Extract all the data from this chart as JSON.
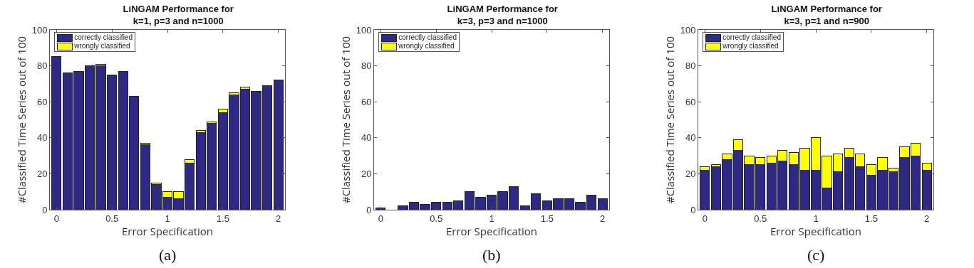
{
  "chart_data": [
    {
      "type": "bar",
      "stacked": true,
      "title": "LiNGAM Performance for\nk=1, p=3 and n=1000",
      "xlabel": "Error Specification",
      "ylabel": "#Classified Time Series out of 100",
      "x": [
        0,
        0.1,
        0.2,
        0.3,
        0.4,
        0.5,
        0.6,
        0.7,
        0.8,
        0.9,
        1,
        1.1,
        1.2,
        1.3,
        1.4,
        1.5,
        1.6,
        1.7,
        1.8,
        1.9,
        2
      ],
      "xlim": [
        -0.06,
        2.06
      ],
      "xticks": [
        0,
        0.5,
        1,
        1.5,
        2
      ],
      "ylim": [
        0,
        100
      ],
      "yticks": [
        0,
        20,
        40,
        60,
        80,
        100
      ],
      "grid": false,
      "legend": "top left",
      "annotations": [
        "(a)"
      ],
      "series": [
        {
          "name": "correctly classified",
          "color": "#2e2a83",
          "values": [
            85,
            76,
            77,
            80,
            80,
            75,
            77,
            63,
            36,
            14,
            7,
            6,
            26,
            43,
            48,
            54,
            64,
            67,
            66,
            69,
            72
          ]
        },
        {
          "name": "wrongly classified",
          "color": "#ffff00",
          "values": [
            0,
            0,
            0,
            0,
            1,
            0,
            0,
            0,
            1,
            1,
            3,
            4,
            2,
            1,
            1,
            2,
            1,
            1,
            0,
            0,
            0
          ]
        }
      ]
    },
    {
      "type": "bar",
      "stacked": true,
      "title": "LiNGAM Performance for\nk=3, p=3 and n=1000",
      "xlabel": "Error Specification",
      "ylabel": "#Classified Time Series out of 100",
      "x": [
        0,
        0.1,
        0.2,
        0.3,
        0.4,
        0.5,
        0.6,
        0.7,
        0.8,
        0.9,
        1,
        1.1,
        1.2,
        1.3,
        1.4,
        1.5,
        1.6,
        1.7,
        1.8,
        1.9,
        2
      ],
      "xlim": [
        -0.06,
        2.06
      ],
      "xticks": [
        0,
        0.5,
        1,
        1.5,
        2
      ],
      "ylim": [
        0,
        100
      ],
      "yticks": [
        0,
        20,
        40,
        60,
        80,
        100
      ],
      "grid": false,
      "legend": "top left",
      "annotations": [
        "(b)"
      ],
      "series": [
        {
          "name": "correctly classified",
          "color": "#2e2a83",
          "values": [
            1,
            0,
            2,
            4,
            3,
            4,
            4,
            5,
            10,
            7,
            8,
            10,
            13,
            2,
            9,
            5,
            6,
            6,
            4,
            8,
            6
          ]
        },
        {
          "name": "wrongly classified",
          "color": "#ffff00",
          "values": [
            0,
            0,
            0,
            0,
            0,
            0,
            0,
            0,
            0,
            0,
            0,
            0,
            0,
            0,
            0,
            0,
            0,
            0,
            0,
            0,
            0
          ]
        }
      ]
    },
    {
      "type": "bar",
      "stacked": true,
      "title": "LiNGAM Performance for\nk=3, p=1 and n=900",
      "xlabel": "Error Specification",
      "ylabel": "#Classified Time Series out of 100",
      "x": [
        0,
        0.1,
        0.2,
        0.3,
        0.4,
        0.5,
        0.6,
        0.7,
        0.8,
        0.9,
        1,
        1.1,
        1.2,
        1.3,
        1.4,
        1.5,
        1.6,
        1.7,
        1.8,
        1.9,
        2
      ],
      "xlim": [
        -0.06,
        2.06
      ],
      "xticks": [
        0,
        0.5,
        1,
        1.5,
        2
      ],
      "ylim": [
        0,
        100
      ],
      "yticks": [
        0,
        20,
        40,
        60,
        80,
        100
      ],
      "grid": false,
      "legend": "top left",
      "annotations": [
        "(c)"
      ],
      "series": [
        {
          "name": "correctly classified",
          "color": "#2e2a83",
          "values": [
            22,
            24,
            28,
            33,
            25,
            25,
            26,
            27,
            25,
            22,
            22,
            12,
            21,
            29,
            24,
            19,
            22,
            21,
            29,
            30,
            22
          ]
        },
        {
          "name": "wrongly classified",
          "color": "#ffff00",
          "values": [
            2,
            1,
            3,
            6,
            5,
            4,
            4,
            6,
            7,
            12,
            18,
            18,
            10,
            5,
            7,
            6,
            7,
            2,
            6,
            7,
            4
          ]
        }
      ]
    }
  ]
}
